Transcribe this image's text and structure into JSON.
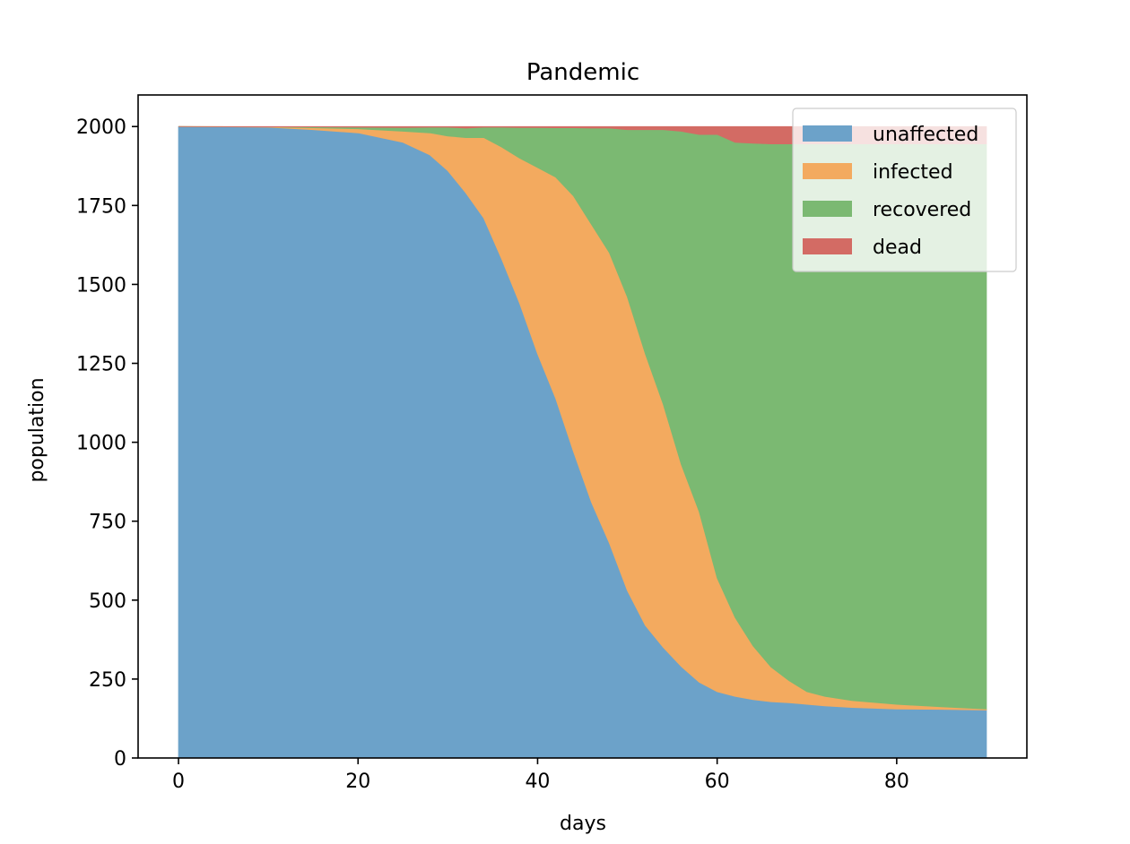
{
  "chart_data": {
    "type": "area",
    "stacked": true,
    "title": "Pandemic",
    "xlabel": "days",
    "ylabel": "population",
    "xlim": [
      -4.5,
      94.5
    ],
    "ylim": [
      0,
      2100
    ],
    "xticks": [
      0,
      20,
      40,
      60,
      80
    ],
    "yticks": [
      0,
      250,
      500,
      750,
      1000,
      1250,
      1500,
      1750,
      2000
    ],
    "grid": false,
    "legend_position": "top-right",
    "x": [
      0,
      10,
      15,
      20,
      25,
      28,
      30,
      32,
      34,
      36,
      38,
      40,
      42,
      44,
      46,
      48,
      50,
      52,
      54,
      56,
      58,
      60,
      62,
      64,
      66,
      68,
      70,
      72,
      75,
      80,
      85,
      90
    ],
    "series": [
      {
        "name": "unaffected",
        "color": "#6ca2c9",
        "values": [
          2000,
          1998,
          1990,
          1980,
          1950,
          1910,
          1860,
          1790,
          1710,
          1580,
          1440,
          1280,
          1140,
          970,
          810,
          680,
          530,
          420,
          350,
          290,
          240,
          210,
          195,
          185,
          178,
          175,
          170,
          165,
          160,
          155,
          154,
          152
        ]
      },
      {
        "name": "infected",
        "color": "#f3aa5f",
        "values": [
          0,
          1,
          6,
          13,
          35,
          70,
          110,
          175,
          255,
          355,
          460,
          590,
          700,
          810,
          880,
          920,
          930,
          860,
          770,
          640,
          540,
          360,
          250,
          170,
          110,
          70,
          40,
          30,
          22,
          15,
          8,
          3
        ]
      },
      {
        "name": "recovered",
        "color": "#7bb972",
        "values": [
          0,
          0,
          3,
          5,
          12,
          18,
          28,
          30,
          33,
          63,
          97,
          127,
          156,
          216,
          305,
          395,
          530,
          710,
          870,
          1055,
          1195,
          1405,
          1505,
          1592,
          1657,
          1700,
          1735,
          1750,
          1763,
          1775,
          1783,
          1790
        ]
      },
      {
        "name": "dead",
        "color": "#d36b64",
        "values": [
          0,
          1,
          1,
          2,
          3,
          2,
          2,
          5,
          2,
          2,
          3,
          3,
          4,
          4,
          5,
          5,
          10,
          10,
          10,
          15,
          25,
          25,
          50,
          53,
          55,
          55,
          55,
          55,
          55,
          55,
          55,
          55
        ]
      }
    ]
  }
}
